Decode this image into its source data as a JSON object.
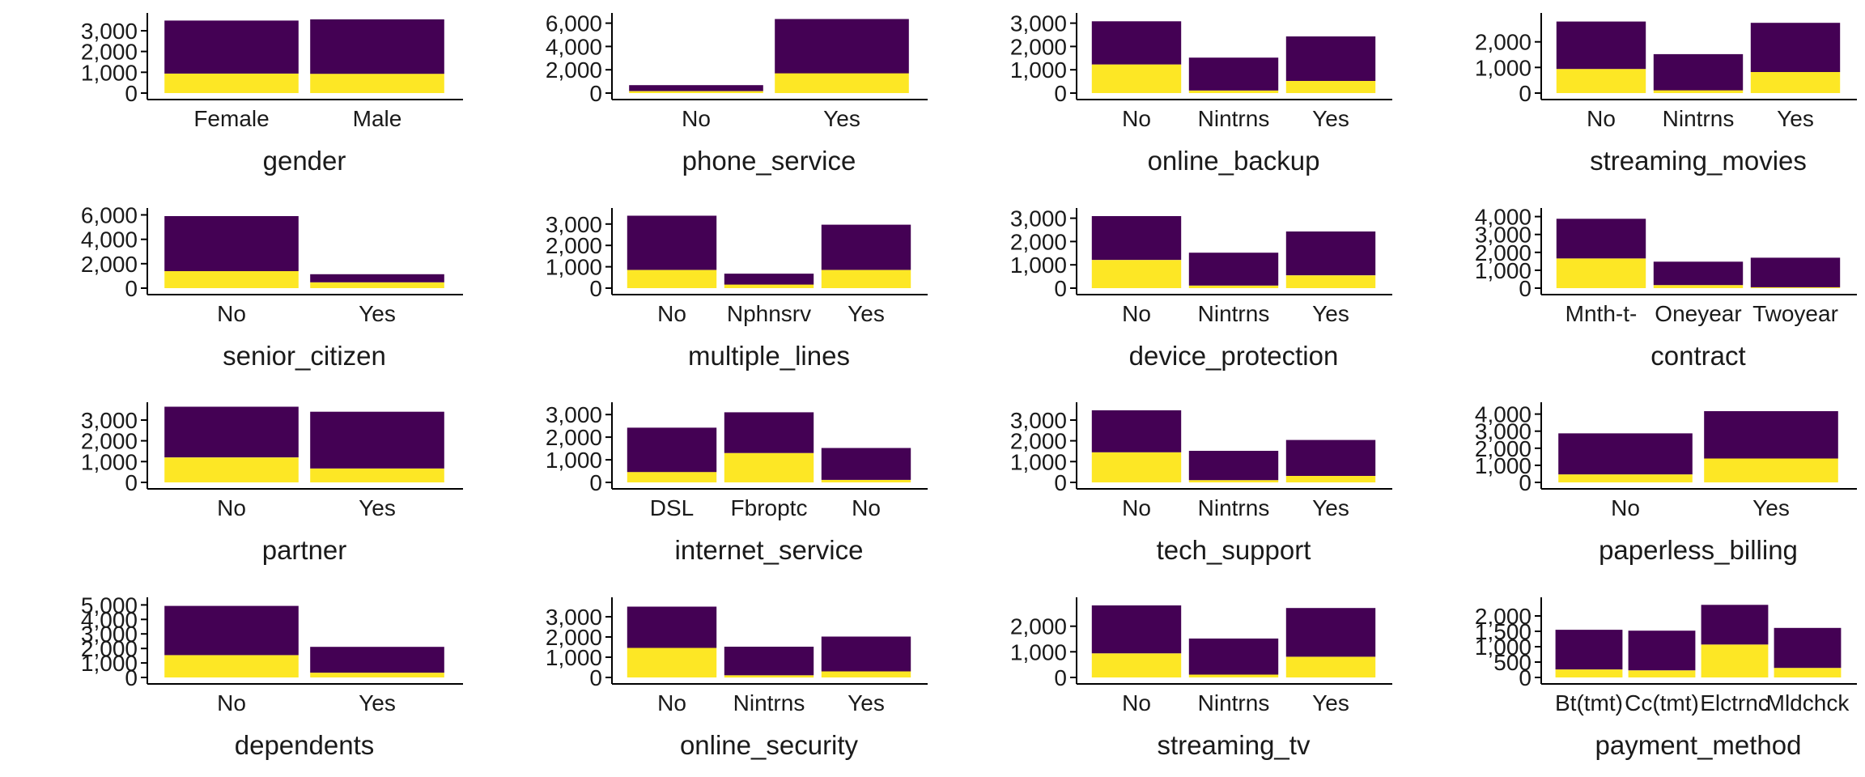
{
  "colors": {
    "top": "#440154",
    "bottom": "#FDE725",
    "axis": "#000000"
  },
  "chart_data": [
    {
      "type": "bar",
      "stacked": true,
      "xlabel": "gender",
      "ylim": [
        0,
        3700
      ],
      "ticks": [
        0,
        1000,
        2000,
        3000
      ],
      "tick_labels": [
        "0",
        "1,000",
        "2,000",
        "3,000"
      ],
      "categories": [
        "Female",
        "Male"
      ],
      "series": [
        {
          "values": [
            940,
            930
          ]
        },
        {
          "values": [
            2550,
            2620
          ]
        }
      ]
    },
    {
      "type": "bar",
      "stacked": true,
      "xlabel": "phone_service",
      "ylim": [
        0,
        6600
      ],
      "ticks": [
        0,
        2000,
        4000,
        6000
      ],
      "tick_labels": [
        "0",
        "2,000",
        "4,000",
        "6,000"
      ],
      "categories": [
        "No",
        "Yes"
      ],
      "series": [
        {
          "values": [
            170,
            1700
          ]
        },
        {
          "values": [
            510,
            4660
          ]
        }
      ]
    },
    {
      "type": "bar",
      "stacked": true,
      "xlabel": "online_backup",
      "ylim": [
        0,
        3300
      ],
      "ticks": [
        0,
        1000,
        2000,
        3000
      ],
      "tick_labels": [
        "0",
        "1,000",
        "2,000",
        "3,000"
      ],
      "categories": [
        "No",
        "Nintrns",
        "Yes"
      ],
      "series": [
        {
          "values": [
            1230,
            110,
            520
          ]
        },
        {
          "values": [
            1850,
            1410,
            1910
          ]
        }
      ]
    },
    {
      "type": "bar",
      "stacked": true,
      "xlabel": "streaming_movies",
      "ylim": [
        0,
        3000
      ],
      "ticks": [
        0,
        1000,
        2000
      ],
      "tick_labels": [
        "0",
        "1,000",
        "2,000"
      ],
      "categories": [
        "No",
        "Nintrns",
        "Yes"
      ],
      "series": [
        {
          "values": [
            940,
            110,
            820
          ]
        },
        {
          "values": [
            1850,
            1410,
            1920
          ]
        }
      ]
    },
    {
      "type": "bar",
      "stacked": true,
      "xlabel": "senior_citizen",
      "ylim": [
        0,
        6300
      ],
      "ticks": [
        0,
        2000,
        4000,
        6000
      ],
      "tick_labels": [
        "0",
        "2,000",
        "4,000",
        "6,000"
      ],
      "categories": [
        "No",
        "Yes"
      ],
      "series": [
        {
          "values": [
            1390,
            480
          ]
        },
        {
          "values": [
            4510,
            660
          ]
        }
      ]
    },
    {
      "type": "bar",
      "stacked": true,
      "xlabel": "multiple_lines",
      "ylim": [
        0,
        3600
      ],
      "ticks": [
        0,
        1000,
        2000,
        3000
      ],
      "tick_labels": [
        "0",
        "1,000",
        "2,000",
        "3,000"
      ],
      "categories": [
        "No",
        "Nphnsrv",
        "Yes"
      ],
      "series": [
        {
          "values": [
            850,
            170,
            850
          ]
        },
        {
          "values": [
            2540,
            510,
            2120
          ]
        }
      ]
    },
    {
      "type": "bar",
      "stacked": true,
      "xlabel": "device_protection",
      "ylim": [
        0,
        3300
      ],
      "ticks": [
        0,
        1000,
        2000,
        3000
      ],
      "tick_labels": [
        "0",
        "1,000",
        "2,000",
        "3,000"
      ],
      "categories": [
        "No",
        "Nintrns",
        "Yes"
      ],
      "series": [
        {
          "values": [
            1210,
            110,
            550
          ]
        },
        {
          "values": [
            1880,
            1410,
            1880
          ]
        }
      ]
    },
    {
      "type": "bar",
      "stacked": true,
      "xlabel": "contract",
      "ylim": [
        0,
        4300
      ],
      "ticks": [
        0,
        1000,
        2000,
        3000,
        4000
      ],
      "tick_labels": [
        "0",
        "1,000",
        "2,000",
        "3,000",
        "4,000"
      ],
      "categories": [
        "Mnth-t-",
        "Oneyear",
        "Twoyear"
      ],
      "series": [
        {
          "values": [
            1660,
            170,
            50
          ]
        },
        {
          "values": [
            2220,
            1310,
            1650
          ]
        }
      ]
    },
    {
      "type": "bar",
      "stacked": true,
      "xlabel": "partner",
      "ylim": [
        0,
        3700
      ],
      "ticks": [
        0,
        1000,
        2000,
        3000
      ],
      "tick_labels": [
        "0",
        "1,000",
        "2,000",
        "3,000"
      ],
      "categories": [
        "No",
        "Yes"
      ],
      "series": [
        {
          "values": [
            1200,
            670
          ]
        },
        {
          "values": [
            2440,
            2730
          ]
        }
      ]
    },
    {
      "type": "bar",
      "stacked": true,
      "xlabel": "internet_service",
      "ylim": [
        0,
        3400
      ],
      "ticks": [
        0,
        1000,
        2000,
        3000
      ],
      "tick_labels": [
        "0",
        "1,000",
        "2,000",
        "3,000"
      ],
      "categories": [
        "DSL",
        "Fbroptc",
        "No"
      ],
      "series": [
        {
          "values": [
            460,
            1300,
            110
          ]
        },
        {
          "values": [
            1960,
            1800,
            1410
          ]
        }
      ]
    },
    {
      "type": "bar",
      "stacked": true,
      "xlabel": "tech_support",
      "ylim": [
        0,
        3700
      ],
      "ticks": [
        0,
        1000,
        2000,
        3000
      ],
      "tick_labels": [
        "0",
        "1,000",
        "2,000",
        "3,000"
      ],
      "categories": [
        "No",
        "Nintrns",
        "Yes"
      ],
      "series": [
        {
          "values": [
            1450,
            110,
            310
          ]
        },
        {
          "values": [
            2020,
            1410,
            1730
          ]
        }
      ]
    },
    {
      "type": "bar",
      "stacked": true,
      "xlabel": "paperless_billing",
      "ylim": [
        0,
        4500
      ],
      "ticks": [
        0,
        1000,
        2000,
        3000,
        4000
      ],
      "tick_labels": [
        "0",
        "1,000",
        "2,000",
        "3,000",
        "4,000"
      ],
      "categories": [
        "No",
        "Yes"
      ],
      "series": [
        {
          "values": [
            470,
            1400
          ]
        },
        {
          "values": [
            2400,
            2770
          ]
        }
      ]
    },
    {
      "type": "bar",
      "stacked": true,
      "xlabel": "dependents",
      "ylim": [
        0,
        5300
      ],
      "ticks": [
        0,
        1000,
        2000,
        3000,
        4000,
        5000
      ],
      "tick_labels": [
        "0",
        "1,000",
        "2,000",
        "3,000",
        "4,000",
        "5,000"
      ],
      "categories": [
        "No",
        "Yes"
      ],
      "series": [
        {
          "values": [
            1540,
            330
          ]
        },
        {
          "values": [
            3390,
            1780
          ]
        }
      ]
    },
    {
      "type": "bar",
      "stacked": true,
      "xlabel": "online_security",
      "ylim": [
        0,
        3800
      ],
      "ticks": [
        0,
        1000,
        2000,
        3000
      ],
      "tick_labels": [
        "0",
        "1,000",
        "2,000",
        "3,000"
      ],
      "categories": [
        "No",
        "Nintrns",
        "Yes"
      ],
      "series": [
        {
          "values": [
            1460,
            110,
            300
          ]
        },
        {
          "values": [
            2040,
            1410,
            1720
          ]
        }
      ]
    },
    {
      "type": "bar",
      "stacked": true,
      "xlabel": "streaming_tv",
      "ylim": [
        0,
        3000
      ],
      "ticks": [
        0,
        1000,
        2000
      ],
      "tick_labels": [
        "0",
        "1,000",
        "2,000"
      ],
      "categories": [
        "No",
        "Nintrns",
        "Yes"
      ],
      "series": [
        {
          "values": [
            940,
            110,
            810
          ]
        },
        {
          "values": [
            1870,
            1410,
            1900
          ]
        }
      ]
    },
    {
      "type": "bar",
      "stacked": true,
      "xlabel": "payment_method",
      "ylim": [
        0,
        2500
      ],
      "ticks": [
        0,
        500,
        1000,
        1500,
        2000
      ],
      "tick_labels": [
        "0",
        "500",
        "1,000",
        "1,500",
        "2,000"
      ],
      "categories": [
        "Bt(tmt)",
        "Cc(tmt)",
        "Elctrnc",
        "Mldchck"
      ],
      "series": [
        {
          "values": [
            260,
            230,
            1070,
            310
          ]
        },
        {
          "values": [
            1290,
            1290,
            1290,
            1300
          ]
        }
      ]
    }
  ]
}
